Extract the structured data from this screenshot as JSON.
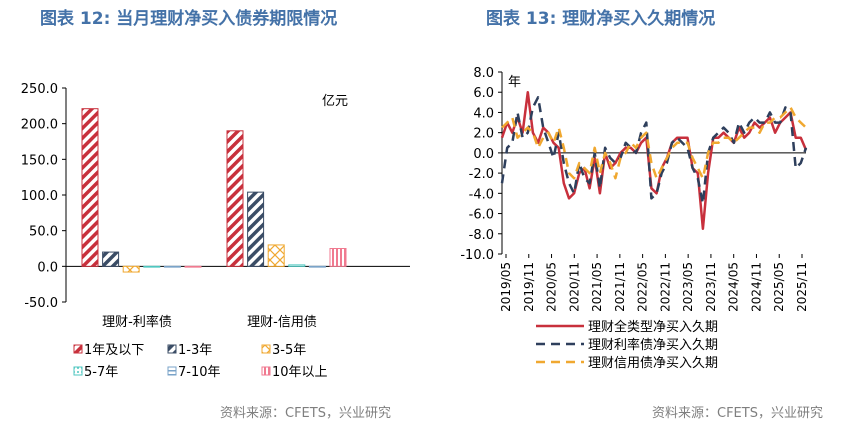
{
  "left": {
    "title": "图表 12: 当月理财净买入债券期限情况",
    "source": "资料来源：CFETS，兴业研究",
    "chart_data": {
      "type": "bar",
      "unit": "亿元",
      "ylim": [
        -50,
        250
      ],
      "yticks": [
        "250.0",
        "200.0",
        "150.0",
        "100.0",
        "50.0",
        "0.0",
        "-50.0"
      ],
      "categories": [
        "理财-利率债",
        "理财-信用债"
      ],
      "series": [
        {
          "name": "1年及以下",
          "color": "#c8303c",
          "pattern": "diag",
          "values": [
            221,
            190
          ]
        },
        {
          "name": "1-3年",
          "color": "#3b4d66",
          "pattern": "diag",
          "values": [
            20,
            104
          ]
        },
        {
          "name": "3-5年",
          "color": "#f0a830",
          "pattern": "cross",
          "values": [
            -8,
            30
          ]
        },
        {
          "name": "5-7年",
          "color": "#4fc7c0",
          "pattern": "dots",
          "values": [
            -1,
            2
          ]
        },
        {
          "name": "7-10年",
          "color": "#7aa3c8",
          "pattern": "hlines",
          "values": [
            -1,
            -1
          ]
        },
        {
          "name": "10年以上",
          "color": "#f07a90",
          "pattern": "vlines",
          "values": [
            -1,
            25
          ]
        }
      ]
    }
  },
  "right": {
    "title": "图表 13: 理财净买入久期情况",
    "source": "资料来源：CFETS，兴业研究",
    "chart_data": {
      "type": "line",
      "unit": "年",
      "ylim": [
        -10,
        8
      ],
      "yticks": [
        "8.0",
        "6.0",
        "4.0",
        "2.0",
        "0.0",
        "-2.0",
        "-4.0",
        "-6.0",
        "-8.0",
        "-10.0"
      ],
      "x_start": "2019-05",
      "x_end": "2025-12",
      "xticks": [
        "2019/05",
        "2019/11",
        "2020/05",
        "2020/11",
        "2021/05",
        "2021/11",
        "2022/05",
        "2022/11",
        "2023/05",
        "2023/11",
        "2024/05",
        "2024/11",
        "2025/05",
        "2025/11"
      ],
      "series": [
        {
          "name": "理财全类型净买入久期",
          "color": "#c8303c",
          "dash": "solid",
          "values": [
            1.5,
            3,
            2,
            3.5,
            2,
            6,
            2,
            1,
            2.5,
            2,
            1,
            0.5,
            -3,
            -4.5,
            -4,
            -2,
            -1.5,
            -3.5,
            -0.5,
            -4,
            0,
            -1.5,
            -1,
            0,
            0.5,
            0.5,
            0,
            1,
            1.5,
            -3.5,
            -4,
            -1.5,
            -0.5,
            1,
            1.5,
            1.5,
            1.5,
            -1.5,
            -2,
            -7.5,
            -2,
            1.5,
            1.5,
            2,
            1.5,
            1,
            2.5,
            1.5,
            2,
            3,
            2.5,
            3,
            3.5,
            2,
            3,
            3.5,
            4,
            1.5,
            1.5,
            0.3
          ]
        },
        {
          "name": "理财利率债净买入久期",
          "color": "#2e3f5c",
          "dash": "dashed",
          "values": [
            -3,
            0.5,
            1,
            4,
            1.5,
            2,
            4.5,
            5.5,
            2.5,
            1,
            -0.5,
            2,
            -1,
            -3,
            -4,
            -1,
            -2.5,
            -3,
            0,
            -3.5,
            0.5,
            -0.5,
            -1,
            -0.5,
            1,
            0.5,
            0,
            2,
            3,
            -4.5,
            -4,
            -2,
            -1,
            1,
            1.5,
            1,
            0.5,
            -1.5,
            -2.5,
            -5,
            0,
            1.5,
            2,
            2.5,
            2,
            1,
            3,
            2,
            3,
            3.5,
            3,
            3,
            4,
            3,
            3,
            4.5,
            4,
            -1.5,
            -1,
            0.5
          ]
        },
        {
          "name": "理财信用债净买入久期",
          "color": "#f0a830",
          "dash": "dashed",
          "values": [
            2.5,
            3,
            3.5,
            1.5,
            2,
            2.5,
            2,
            0.5,
            1.5,
            2,
            1,
            2.5,
            0.5,
            -2,
            -2.5,
            -1,
            -1.5,
            -2,
            0.5,
            -2,
            0,
            -1,
            -2.5,
            -0.5,
            0,
            1,
            0.5,
            1.5,
            2,
            -1,
            -2.5,
            -1.5,
            -0.5,
            0.5,
            1,
            1,
            1,
            -0.5,
            -1.5,
            -2.5,
            0,
            1,
            1,
            1.5,
            1.5,
            1,
            1.5,
            2,
            2.5,
            2.5,
            2,
            3,
            3,
            3.5,
            3.5,
            4,
            4.5,
            3.5,
            3,
            2.5
          ]
        }
      ]
    }
  }
}
